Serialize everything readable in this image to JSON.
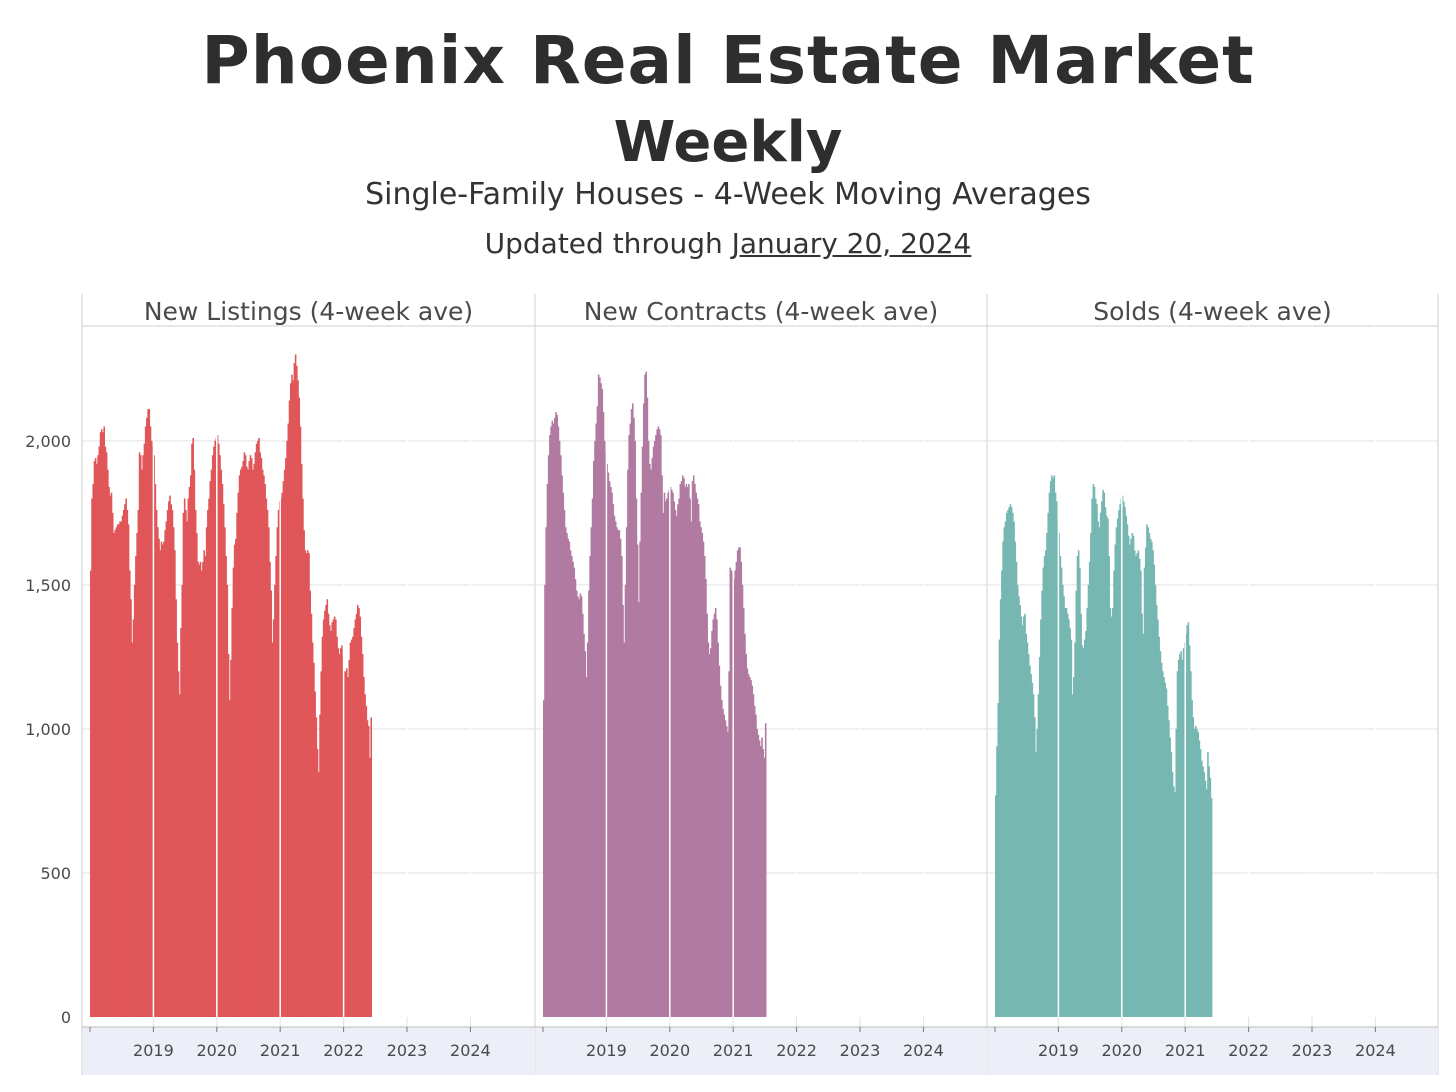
{
  "header": {
    "title": "Phoenix Real Estate Market",
    "subtitle": "Weekly",
    "description": "Single-Family Houses - 4-Week Moving Averages",
    "updated_prefix": "Updated through ",
    "updated_date": "January 20, 2024"
  },
  "chart_data": {
    "type": "bar",
    "yticks": [
      0,
      500,
      1000,
      1500,
      2000
    ],
    "ylim": [
      0,
      2350
    ],
    "xticks": [
      "2019",
      "2020",
      "2021",
      "2022",
      "2023",
      "2024"
    ],
    "grid": true,
    "panels": [
      {
        "title": "New Listings (4-week ave)",
        "color": "#e05659",
        "start_year": 2018.0,
        "weeks_per_year": 52,
        "values": [
          1550,
          1800,
          1850,
          1930,
          1940,
          1920,
          1950,
          1980,
          2030,
          2040,
          2030,
          2050,
          1980,
          1960,
          1900,
          1840,
          1810,
          1820,
          1750,
          1680,
          1690,
          1700,
          1710,
          1710,
          1720,
          1720,
          1740,
          1760,
          1780,
          1800,
          1760,
          1710,
          1550,
          1450,
          1300,
          1380,
          1500,
          1600,
          1680,
          1760,
          1960,
          1950,
          1900,
          1950,
          1990,
          2050,
          2080,
          2110,
          2110,
          2050,
          2000,
          1980,
          1950,
          1850,
          1760,
          1700,
          1660,
          1620,
          1650,
          1640,
          1650,
          1690,
          1720,
          1760,
          1790,
          1810,
          1780,
          1760,
          1700,
          1620,
          1450,
          1300,
          1200,
          1120,
          1350,
          1500,
          1750,
          1800,
          1760,
          1720,
          1800,
          1840,
          1880,
          1990,
          2010,
          1900,
          1760,
          1680,
          1580,
          1570,
          1580,
          1550,
          1580,
          1620,
          1600,
          1700,
          1760,
          1800,
          1860,
          1900,
          1950,
          1980,
          2000,
          2010,
          2020,
          1990,
          1950,
          1900,
          1850,
          1780,
          1700,
          1600,
          1500,
          1260,
          1100,
          1240,
          1420,
          1560,
          1640,
          1660,
          1750,
          1820,
          1880,
          1900,
          1910,
          1930,
          1960,
          1950,
          1910,
          1900,
          1930,
          1950,
          1940,
          1900,
          1920,
          1960,
          1990,
          2000,
          2010,
          1960,
          1940,
          1900,
          1880,
          1850,
          1800,
          1760,
          1700,
          1580,
          1480,
          1300,
          1380,
          1500,
          1600,
          1700,
          1760,
          1790,
          1800,
          1820,
          1860,
          1900,
          1940,
          2000,
          2060,
          2140,
          2200,
          2230,
          2210,
          2270,
          2300,
          2260,
          2210,
          2150,
          2050,
          1920,
          1800,
          1690,
          1620,
          1610,
          1620,
          1610,
          1480,
          1400,
          1300,
          1230,
          1130,
          1040,
          930,
          850,
          1050,
          1200,
          1320,
          1380,
          1410,
          1430,
          1450,
          1400,
          1360,
          1340,
          1370,
          1380,
          1390,
          1380,
          1320,
          1280,
          1260,
          1280,
          1290,
          1250,
          1200,
          1200,
          1210,
          1180,
          1240,
          1300,
          1310,
          1320,
          1350,
          1380,
          1400,
          1430,
          1420,
          1390,
          1320,
          1260,
          1180,
          1120,
          1080,
          1030,
          1010,
          900,
          1040
        ]
      },
      {
        "title": "New Contracts (4-week ave)",
        "color": "#b07aa1",
        "start_year": 2018.0,
        "weeks_per_year": 52,
        "values": [
          1100,
          1500,
          1700,
          1850,
          1950,
          2020,
          2050,
          2070,
          2060,
          2080,
          2100,
          2090,
          2050,
          2000,
          1950,
          1880,
          1820,
          1760,
          1700,
          1680,
          1660,
          1650,
          1620,
          1600,
          1580,
          1560,
          1520,
          1480,
          1460,
          1450,
          1470,
          1460,
          1400,
          1330,
          1270,
          1180,
          1300,
          1480,
          1600,
          1700,
          1800,
          1930,
          2000,
          2060,
          2120,
          2230,
          2220,
          2200,
          2180,
          2100,
          2000,
          1960,
          1920,
          1890,
          1860,
          1840,
          1820,
          1780,
          1740,
          1720,
          1700,
          1690,
          1690,
          1660,
          1600,
          1430,
          1300,
          1500,
          1700,
          1900,
          2020,
          2060,
          2110,
          2130,
          2080,
          2000,
          1800,
          1640,
          1440,
          1650,
          1820,
          1980,
          2130,
          2230,
          2240,
          2150,
          2000,
          1920,
          1900,
          1940,
          1980,
          2000,
          2020,
          2040,
          2050,
          2040,
          2020,
          1880,
          1750,
          1820,
          1790,
          1800,
          1820,
          1830,
          1840,
          1830,
          1820,
          1790,
          1760,
          1740,
          1780,
          1800,
          1850,
          1860,
          1880,
          1870,
          1840,
          1850,
          1840,
          1850,
          1800,
          1720,
          1860,
          1880,
          1850,
          1820,
          1800,
          1780,
          1720,
          1700,
          1680,
          1650,
          1600,
          1520,
          1400,
          1300,
          1260,
          1280,
          1340,
          1380,
          1400,
          1420,
          1380,
          1300,
          1220,
          1150,
          1100,
          1070,
          1050,
          1030,
          1010,
          990,
          1200,
          1560,
          1550,
          1540,
          1520,
          1550,
          1580,
          1620,
          1630,
          1630,
          1580,
          1500,
          1420,
          1330,
          1260,
          1210,
          1190,
          1180,
          1170,
          1150,
          1120,
          1080,
          1050,
          1000,
          980,
          960,
          940,
          970,
          930,
          900,
          1020
        ]
      },
      {
        "title": "Solds (4-week ave)",
        "color": "#76b7b2",
        "start_year": 2018.0,
        "weeks_per_year": 52,
        "values": [
          770,
          940,
          1090,
          1310,
          1450,
          1550,
          1650,
          1700,
          1720,
          1750,
          1760,
          1770,
          1780,
          1770,
          1750,
          1720,
          1650,
          1580,
          1500,
          1460,
          1430,
          1390,
          1360,
          1390,
          1400,
          1330,
          1300,
          1260,
          1220,
          1190,
          1160,
          1120,
          1040,
          920,
          1000,
          1120,
          1250,
          1380,
          1480,
          1560,
          1600,
          1620,
          1680,
          1750,
          1820,
          1860,
          1880,
          1870,
          1880,
          1820,
          1790,
          1720,
          1680,
          1600,
          1560,
          1500,
          1460,
          1420,
          1420,
          1400,
          1380,
          1350,
          1310,
          1120,
          1180,
          1300,
          1480,
          1600,
          1620,
          1560,
          1400,
          1290,
          1280,
          1310,
          1340,
          1420,
          1500,
          1580,
          1680,
          1800,
          1850,
          1840,
          1800,
          1780,
          1720,
          1700,
          1750,
          1790,
          1830,
          1820,
          1770,
          1740,
          1730,
          1600,
          1420,
          1390,
          1420,
          1550,
          1640,
          1700,
          1730,
          1760,
          1780,
          1800,
          1810,
          1790,
          1770,
          1740,
          1710,
          1670,
          1640,
          1660,
          1680,
          1670,
          1620,
          1600,
          1610,
          1620,
          1590,
          1550,
          1400,
          1330,
          1560,
          1630,
          1710,
          1700,
          1680,
          1660,
          1650,
          1620,
          1570,
          1500,
          1430,
          1380,
          1320,
          1270,
          1230,
          1200,
          1180,
          1160,
          1140,
          1080,
          1030,
          970,
          920,
          850,
          800,
          780,
          1000,
          1200,
          1240,
          1260,
          1270,
          1240,
          1280,
          1300,
          1330,
          1360,
          1370,
          1290,
          1200,
          1100,
          1040,
          1000,
          1010,
          1000,
          990,
          960,
          930,
          890,
          870,
          850,
          820,
          790,
          920,
          870,
          830,
          760
        ]
      }
    ]
  }
}
